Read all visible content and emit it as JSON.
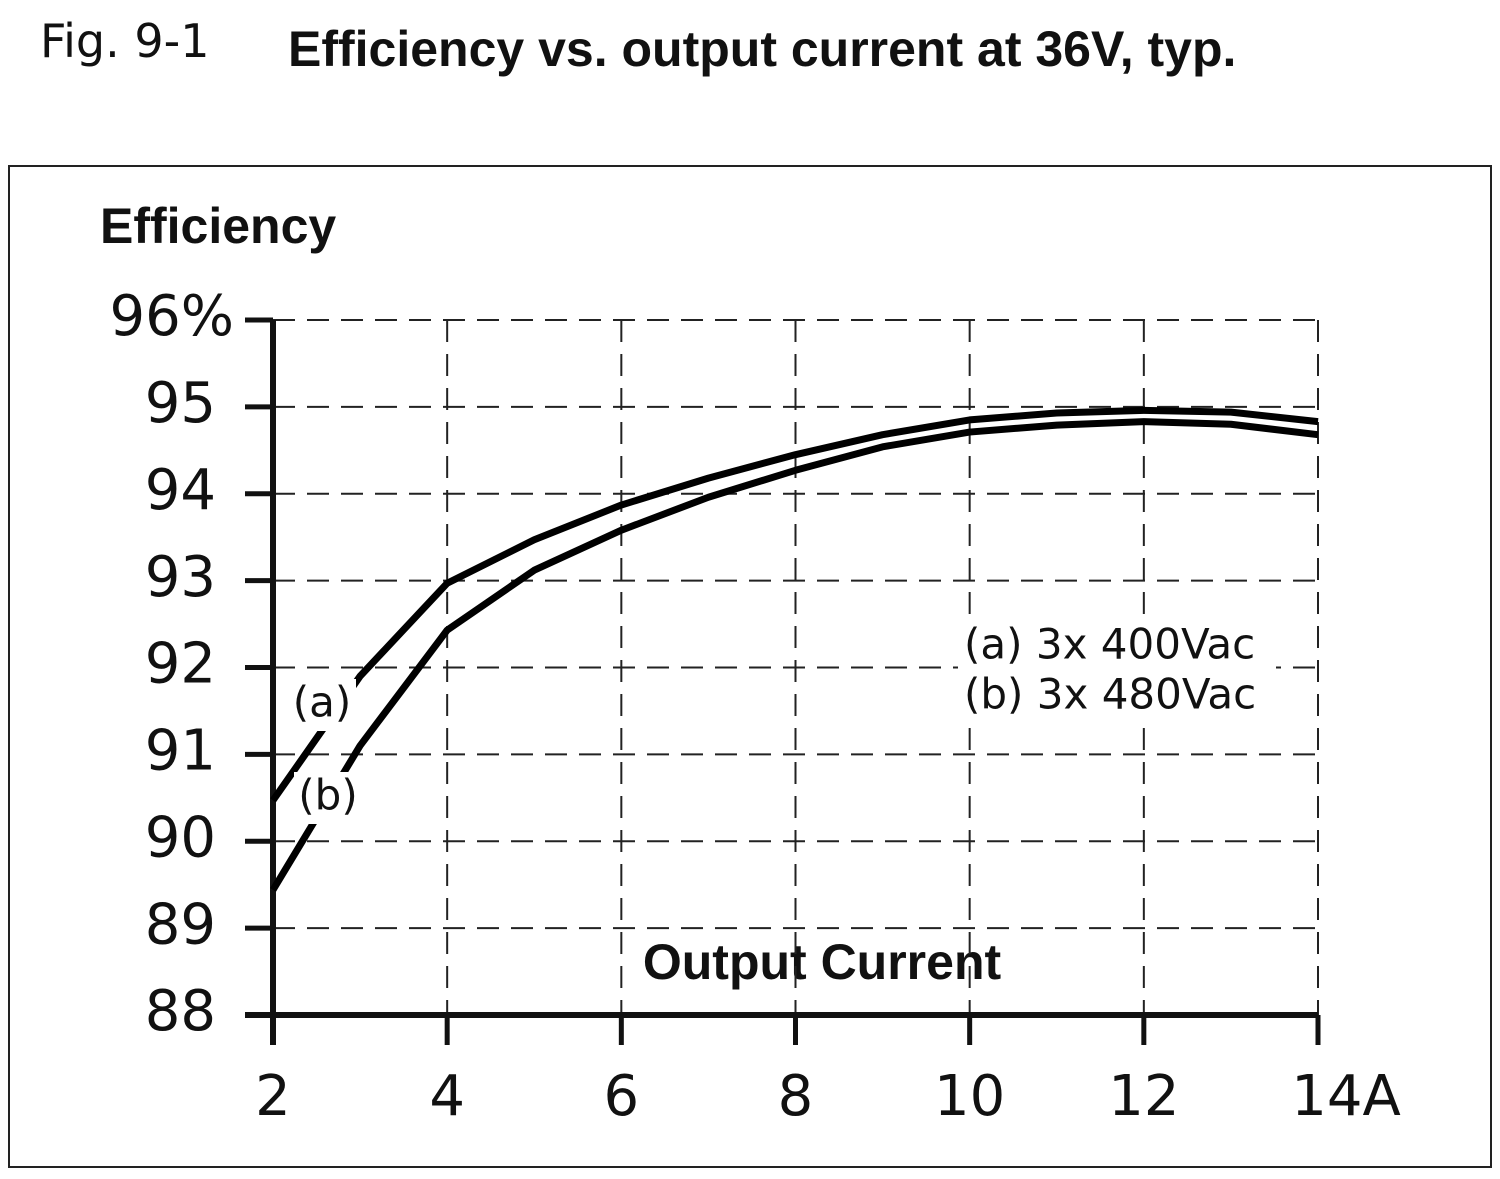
{
  "chart_data": {
    "type": "line",
    "figure_label": "Fig. 9-1",
    "title": "Efficiency vs. output current at 36V, typ.",
    "ylabel": "Efficiency",
    "xlabel": "Output Current",
    "x": [
      2,
      3,
      4,
      5,
      6,
      7,
      8,
      9,
      10,
      11,
      12,
      13,
      14
    ],
    "series": [
      {
        "name": "(a)",
        "color": "#000000",
        "values": [
          90.47,
          91.9,
          92.97,
          93.47,
          93.87,
          94.18,
          94.45,
          94.68,
          94.85,
          94.93,
          94.96,
          94.94,
          94.83
        ]
      },
      {
        "name": "(b)",
        "color": "#000000",
        "values": [
          89.44,
          91.1,
          92.43,
          93.12,
          93.58,
          93.96,
          94.27,
          94.54,
          94.71,
          94.79,
          94.83,
          94.8,
          94.68
        ]
      }
    ],
    "annotations": [
      "(a) 3x 400Vac",
      "(b) 3x 480Vac"
    ],
    "xlim": [
      2,
      14
    ],
    "xticks": [
      2,
      4,
      6,
      8,
      10,
      12,
      {
        "value": 14,
        "label": "14A"
      }
    ],
    "ylim": [
      88,
      96
    ],
    "yticks": [
      88,
      89,
      90,
      91,
      92,
      93,
      94,
      95,
      {
        "value": 96,
        "label": "96%"
      }
    ],
    "grid": true
  }
}
